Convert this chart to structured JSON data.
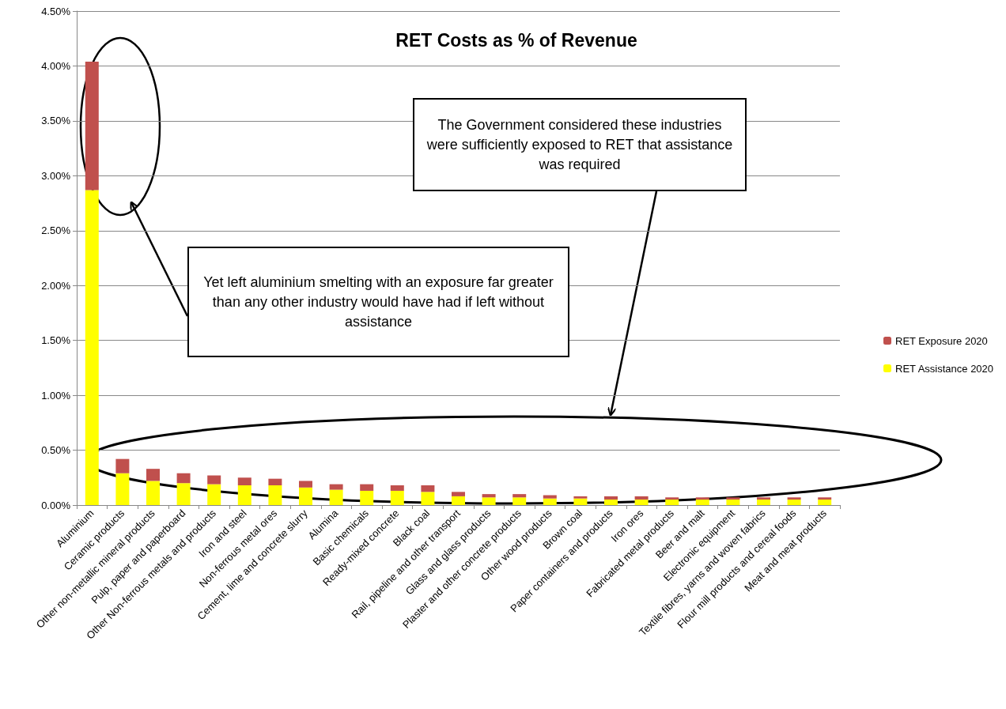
{
  "chart_data": {
    "type": "bar",
    "title": "RET Costs as % of Revenue",
    "categories": [
      "Aluminium",
      "Ceramic products",
      "Other non-metallic mineral products",
      "Pulp, paper and paperboard",
      "Other Non-ferrous metals and products",
      "Iron and steel",
      "Non-ferrous metal ores",
      "Cement, lime and concrete slurry",
      "Alumina",
      "Basic chemicals",
      "Ready-mixed concrete",
      "Black coal",
      "Rail, pipeline and other transport",
      "Glass and glass products",
      "Plaster and other concrete products",
      "Other wood products",
      "Brown coal",
      "Paper containers and products",
      "Iron ores",
      "Fabricated metal products",
      "Beer and malt",
      "Electronic equipment",
      "Textile fibres, yarns and woven fabrics",
      "Flour mill products and cereal foods",
      "Meat and meat products"
    ],
    "stacked": true,
    "series": [
      {
        "name": "RET Assistance 2020",
        "color": "#ffff00",
        "values": [
          2.87,
          0.29,
          0.22,
          0.2,
          0.19,
          0.18,
          0.18,
          0.16,
          0.14,
          0.13,
          0.13,
          0.12,
          0.08,
          0.07,
          0.07,
          0.06,
          0.06,
          0.05,
          0.05,
          0.05,
          0.05,
          0.05,
          0.05,
          0.05,
          0.05
        ]
      },
      {
        "name": "RET Exposure 2020",
        "color": "#c0504d",
        "values": [
          1.17,
          0.13,
          0.11,
          0.09,
          0.08,
          0.07,
          0.06,
          0.06,
          0.05,
          0.06,
          0.05,
          0.06,
          0.04,
          0.03,
          0.03,
          0.03,
          0.02,
          0.03,
          0.03,
          0.02,
          0.02,
          0.02,
          0.02,
          0.02,
          0.02
        ]
      }
    ],
    "ylim": [
      0,
      4.5
    ],
    "yticks": [
      {
        "value": 0,
        "label": "0.00%"
      },
      {
        "value": 0.5,
        "label": "0.50%"
      },
      {
        "value": 1,
        "label": "1.00%"
      },
      {
        "value": 1.5,
        "label": "1.50%"
      },
      {
        "value": 2,
        "label": "2.00%"
      },
      {
        "value": 2.5,
        "label": "2.50%"
      },
      {
        "value": 3,
        "label": "3.00%"
      },
      {
        "value": 3.5,
        "label": "3.50%"
      },
      {
        "value": 4,
        "label": "4.00%"
      },
      {
        "value": 4.5,
        "label": "4.50%"
      }
    ],
    "grid": "y",
    "legend": "right",
    "annotations": [
      "The Government considered these industries were sufficiently exposed to RET that assistance was required",
      "Yet left aluminium smelting with an exposure far greater than any other industry would have had if left without assistance"
    ]
  }
}
